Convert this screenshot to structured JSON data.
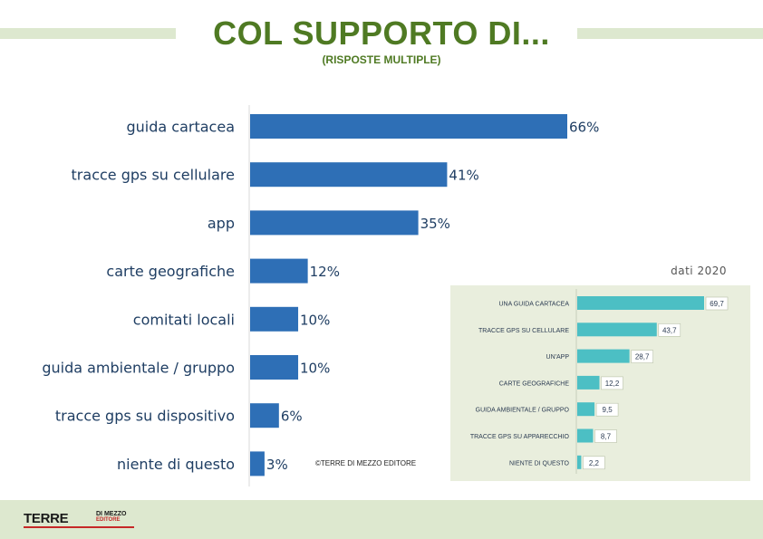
{
  "header": {
    "title": "COL SUPPORTO DI...",
    "subtitle": "(RISPOSTE MULTIPLE)"
  },
  "colors": {
    "title_green": "#4f7a23",
    "main_bar": "#2e6fb6",
    "inset_bar": "#4cbfc4",
    "panel_bg": "#e9eedd",
    "band_green": "#dde8cf",
    "logo_red": "#c62828"
  },
  "chart_data": [
    {
      "type": "bar",
      "orientation": "horizontal",
      "categories": [
        "guida cartacea",
        "tracce gps su cellulare",
        "app",
        "carte geografiche",
        "comitati locali",
        "guida ambientale / gruppo",
        "tracce gps su dispositivo",
        "niente di questo"
      ],
      "values": [
        66,
        41,
        35,
        12,
        10,
        10,
        6,
        3
      ],
      "value_labels": [
        "66%",
        "41%",
        "35%",
        "12%",
        "10%",
        "10%",
        "6%",
        "3%"
      ],
      "unit": "%",
      "xlim": [
        0,
        100
      ],
      "grid": false,
      "legend": "none"
    },
    {
      "type": "bar",
      "orientation": "horizontal",
      "title": "dati 2020",
      "categories": [
        "UNA GUIDA CARTACEA",
        "TRACCE GPS SU CELLULARE",
        "UN'APP",
        "CARTE GEOGRAFICHE",
        "GUIDA AMBIENTALE / GRUPPO",
        "TRACCE GPS SU APPARECCHIO",
        "NIENTE DI QUESTO"
      ],
      "values": [
        69.7,
        43.7,
        28.7,
        12.2,
        9.5,
        8.7,
        2.2
      ],
      "value_labels": [
        "69,7",
        "43,7",
        "28,7",
        "12,2",
        "9,5",
        "8,7",
        "2,2"
      ],
      "xlim": [
        0,
        100
      ],
      "grid": false,
      "legend": "none"
    }
  ],
  "credits": {
    "copyright": "©TERRE DI MEZZO EDITORE"
  },
  "footer": {
    "logo_main": "TERRE",
    "logo_line1": "DI MEZZO",
    "logo_line2": "EDITORE"
  }
}
